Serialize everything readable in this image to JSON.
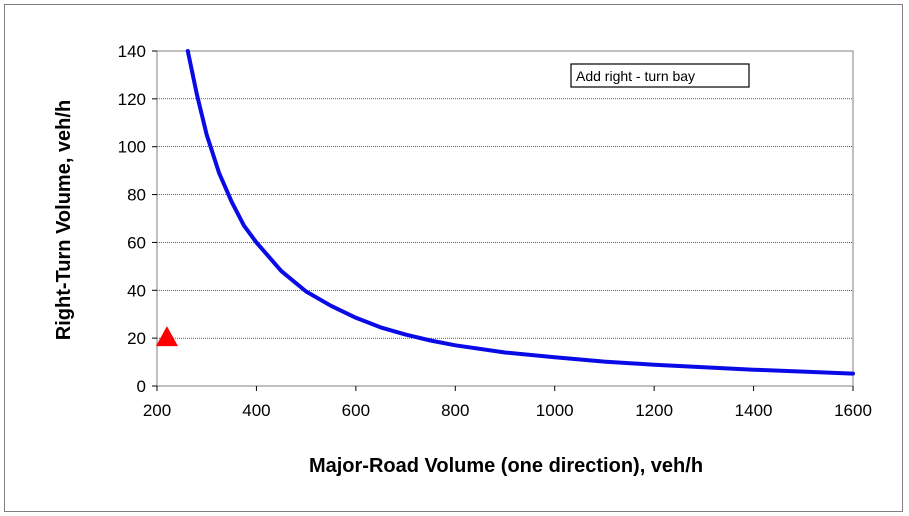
{
  "chart_data": {
    "type": "line",
    "xlabel": "Major-Road Volume (one direction), veh/h",
    "ylabel": "Right-Turn Volume, veh/h",
    "xlim": [
      200,
      1600
    ],
    "ylim": [
      0,
      140
    ],
    "x_ticks": [
      200,
      400,
      600,
      800,
      1000,
      1200,
      1400,
      1600
    ],
    "y_ticks": [
      0,
      20,
      40,
      60,
      80,
      100,
      120,
      140
    ],
    "grid": "horizontal",
    "annotation": "Add right - turn bay",
    "curve": {
      "color": "#0a0ae6",
      "x": [
        262,
        280,
        300,
        325,
        350,
        375,
        400,
        450,
        500,
        550,
        600,
        650,
        700,
        750,
        800,
        900,
        1000,
        1100,
        1200,
        1300,
        1400,
        1500,
        1600
      ],
      "y": [
        140,
        122,
        105,
        89,
        77,
        67,
        60,
        48,
        39.5,
        33.5,
        28.5,
        24.5,
        21.5,
        19,
        17,
        14,
        12,
        10.2,
        8.9,
        7.8,
        6.8,
        6,
        5.2
      ]
    },
    "marker": {
      "shape": "triangle",
      "color": "#ff0000",
      "x": 220,
      "y": 20
    }
  }
}
